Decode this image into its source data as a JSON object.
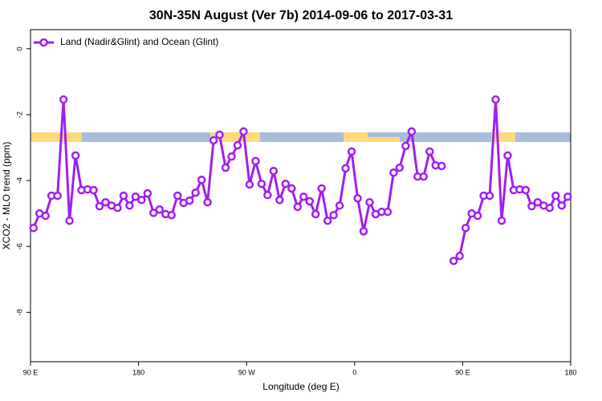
{
  "chart_data": {
    "type": "line",
    "title": "30N-35N August (Ver 7b)   2014-09-06 to 2017-03-31",
    "x_label": "Longitude (deg E)",
    "y_label": "XCO2 - MLO trend (ppm)",
    "legend_position": "upper left",
    "xlim": [
      90,
      540
    ],
    "ylim": [
      -9.5,
      0.58
    ],
    "xticks": [
      {
        "value": 90,
        "label": "90 E"
      },
      180,
      {
        "value": 270,
        "label": "90 W"
      },
      {
        "value": 360,
        "label": "0"
      },
      {
        "value": 450,
        "label": "90 E"
      },
      {
        "value": 540,
        "label": "180"
      }
    ],
    "yticks": [
      0,
      -2,
      -4,
      -6,
      -8
    ],
    "x": [
      92.5,
      97.5,
      102.5,
      107.5,
      112.5,
      117.5,
      122.5,
      127.5,
      132.5,
      137.5,
      142.5,
      147.5,
      152.5,
      157.5,
      162.5,
      167.5,
      172.5,
      177.5,
      182.5,
      187.5,
      192.5,
      197.5,
      202.5,
      207.5,
      212.5,
      217.5,
      222.5,
      227.5,
      232.5,
      237.5,
      242.5,
      247.5,
      252.5,
      257.5,
      262.5,
      267.5,
      272.5,
      277.5,
      282.5,
      287.5,
      292.5,
      297.5,
      302.5,
      307.5,
      312.5,
      317.5,
      322.5,
      327.5,
      332.5,
      337.5,
      342.5,
      347.5,
      352.5,
      357.5,
      362.5,
      367.5,
      372.5,
      377.5,
      382.5,
      387.5,
      392.5,
      397.5,
      402.5,
      407.5,
      412.5,
      417.5,
      422.5,
      427.5,
      432.5,
      437.5,
      442.5,
      447.5,
      452.5,
      457.5,
      462.5,
      467.5,
      472.5,
      477.5,
      482.5,
      487.5,
      492.5,
      497.5,
      502.5,
      507.5,
      512.5,
      517.5,
      522.5,
      527.5,
      532.5,
      537.5
    ],
    "series": [
      {
        "name": "Land (Nadir&Glint) and Ocean (Glint)",
        "color": "#a020f0",
        "values": [
          -5.44,
          -5.0,
          -5.07,
          -4.46,
          -4.46,
          -1.54,
          -5.22,
          -3.24,
          -4.29,
          -4.27,
          -4.29,
          -4.78,
          -4.66,
          -4.76,
          -4.83,
          -4.46,
          -4.76,
          -4.49,
          -4.59,
          -4.39,
          -4.98,
          -4.88,
          -5.02,
          -5.05,
          -4.46,
          -4.68,
          -4.61,
          -4.37,
          -3.98,
          -4.66,
          -2.78,
          -2.61,
          -3.61,
          -3.27,
          -2.93,
          -2.51,
          -4.12,
          -3.41,
          -4.1,
          -4.44,
          -3.71,
          -4.59,
          -4.1,
          -4.24,
          -4.8,
          -4.49,
          -4.63,
          -5.02,
          -4.24,
          -5.22,
          -5.05,
          -4.76,
          -3.63,
          -3.12,
          -4.54,
          -5.54,
          -4.66,
          -5.02,
          -4.95,
          -4.95,
          -3.76,
          -3.61,
          -2.95,
          -2.51,
          -3.88,
          -3.88,
          -3.12,
          -3.54,
          -3.56,
          null,
          -6.44,
          -6.29,
          -5.44,
          -5.0,
          -5.07,
          -4.46,
          -4.46,
          -1.54,
          -5.22,
          -3.24,
          -4.29,
          -4.27,
          -4.29,
          -4.78,
          -4.66,
          -4.76,
          -4.83,
          -4.46,
          -4.76,
          -4.49
        ]
      }
    ]
  }
}
